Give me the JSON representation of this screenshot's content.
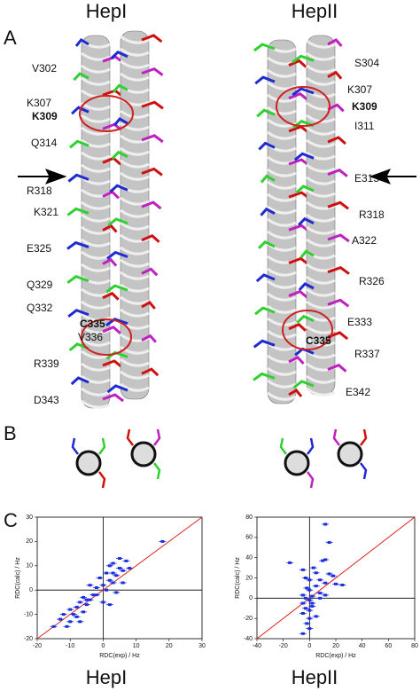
{
  "header": {
    "left": "HepI",
    "right": "HepII"
  },
  "panel_labels": [
    "A",
    "B",
    "C"
  ],
  "residues": {
    "left": [
      {
        "label": "V302"
      },
      {
        "label": "K307"
      },
      {
        "label": "K309",
        "bold": true
      },
      {
        "label": "Q314"
      },
      {
        "label": "R318"
      },
      {
        "label": "K321"
      },
      {
        "label": "E325"
      },
      {
        "label": "Q329"
      },
      {
        "label": "Q332"
      },
      {
        "label": "C335",
        "bold": true
      },
      {
        "label": "V336"
      },
      {
        "label": "R339"
      },
      {
        "label": "D343"
      }
    ],
    "right": [
      {
        "label": "S304"
      },
      {
        "label": "K307"
      },
      {
        "label": "K309",
        "bold": true
      },
      {
        "label": "I311"
      },
      {
        "label": "E315"
      },
      {
        "label": "R318"
      },
      {
        "label": "A322"
      },
      {
        "label": "R326"
      },
      {
        "label": "E333"
      },
      {
        "label": "C335",
        "bold": true
      },
      {
        "label": "R337"
      },
      {
        "label": "E342"
      }
    ]
  },
  "chart_data": [
    {
      "type": "scatter",
      "color": "#1a2ee0",
      "diagonal_color": "#e02020",
      "xlabel": "RDC(exp) / Hz",
      "ylabel": "RDC(calc) / Hz",
      "xlim": [
        -20,
        30
      ],
      "ylim": [
        -20,
        30
      ],
      "xticks": [
        -20,
        -10,
        0,
        10,
        20,
        30
      ],
      "yticks": [
        -20,
        -10,
        0,
        10,
        20,
        30
      ],
      "x": [
        18,
        5,
        7,
        3,
        2,
        5,
        8,
        6,
        1,
        4,
        -1,
        2,
        3,
        6,
        0,
        -4,
        -2,
        1,
        4,
        -3,
        -6,
        -4,
        -7,
        -5,
        -8,
        -10,
        -6,
        -9,
        -12,
        -8,
        -13,
        -10,
        -7,
        -11,
        -15,
        -5,
        0,
        2,
        -2,
        3
      ],
      "values": [
        20,
        13,
        12,
        11,
        10,
        9,
        9,
        8,
        7,
        6,
        5,
        4,
        3,
        3,
        2,
        2,
        1,
        0,
        -1,
        -2,
        -3,
        -4,
        -5,
        -6,
        -7,
        -8,
        -9,
        -10,
        -10,
        -11,
        -12,
        -13,
        -13,
        -15,
        -15,
        -4,
        -5,
        -6,
        -2,
        7
      ]
    },
    {
      "type": "scatter",
      "color": "#1a2ee0",
      "diagonal_color": "#e02020",
      "xlabel": "RDC(exp) / Hz",
      "ylabel": "RDC(calc) / Hz",
      "xlim": [
        -40,
        80
      ],
      "ylim": [
        -40,
        80
      ],
      "xticks": [
        -40,
        -20,
        0,
        20,
        40,
        60,
        80
      ],
      "yticks": [
        -40,
        -20,
        0,
        20,
        40,
        60,
        80
      ],
      "x": [
        12,
        15,
        -15,
        10,
        12,
        3,
        -5,
        5,
        15,
        18,
        -3,
        0,
        8,
        12,
        20,
        5,
        -2,
        0,
        8,
        -5,
        2,
        12,
        -3,
        0,
        8,
        -5,
        2,
        -3,
        0,
        -5,
        5,
        0,
        -2,
        0,
        -5,
        2,
        25
      ],
      "values": [
        73,
        55,
        35,
        37,
        38,
        30,
        28,
        25,
        24,
        22,
        20,
        18,
        18,
        15,
        14,
        12,
        10,
        8,
        5,
        3,
        2,
        3,
        0,
        -2,
        0,
        -5,
        -5,
        -10,
        -12,
        -15,
        -18,
        -20,
        -25,
        -30,
        -35,
        -8,
        13
      ]
    }
  ],
  "footer": {
    "left": "HepI",
    "right": "HepII"
  }
}
